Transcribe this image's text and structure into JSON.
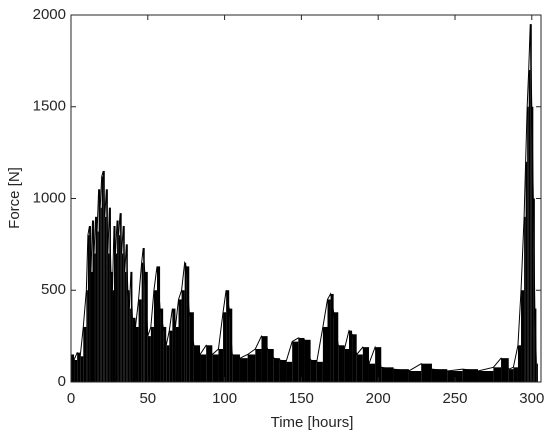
{
  "chart_data": {
    "type": "line",
    "xlabel": "Time [hours]",
    "ylabel": "Force [N]",
    "color": "#000000",
    "xlim": [
      0,
      306
    ],
    "ylim": [
      0,
      2000
    ],
    "xticks": [
      0,
      50,
      100,
      150,
      200,
      250,
      300
    ],
    "yticks": [
      0,
      500,
      1000,
      1500,
      2000
    ],
    "x": [
      0,
      2,
      4,
      6,
      8,
      10,
      11,
      12,
      13,
      14,
      15,
      16,
      17,
      18,
      19,
      20,
      21,
      22,
      23,
      24,
      25,
      26,
      27,
      28,
      29,
      30,
      31,
      32,
      33,
      34,
      35,
      36,
      37,
      38,
      39,
      40,
      42,
      44,
      46,
      47,
      48,
      50,
      52,
      54,
      56,
      58,
      60,
      62,
      64,
      66,
      68,
      70,
      72,
      74,
      75,
      77,
      80,
      84,
      88,
      92,
      96,
      99,
      101,
      103,
      105,
      110,
      115,
      120,
      124,
      128,
      132,
      136,
      140,
      144,
      148,
      152,
      156,
      160,
      164,
      167,
      169,
      171,
      174,
      178,
      181,
      183,
      186,
      190,
      194,
      198,
      202,
      210,
      220,
      228,
      235,
      245,
      255,
      265,
      275,
      280,
      285,
      288,
      291,
      293,
      295,
      296,
      297,
      298,
      299,
      300,
      301,
      302,
      303
    ],
    "values": [
      150,
      120,
      160,
      140,
      300,
      500,
      800,
      850,
      600,
      880,
      700,
      900,
      820,
      1050,
      950,
      1120,
      1150,
      900,
      1050,
      700,
      950,
      600,
      500,
      850,
      700,
      880,
      800,
      920,
      700,
      850,
      600,
      750,
      500,
      400,
      600,
      350,
      300,
      450,
      650,
      730,
      600,
      250,
      300,
      500,
      630,
      400,
      300,
      200,
      280,
      400,
      300,
      450,
      500,
      650,
      630,
      380,
      200,
      150,
      200,
      150,
      180,
      380,
      500,
      400,
      150,
      130,
      150,
      180,
      250,
      180,
      130,
      120,
      110,
      220,
      240,
      230,
      120,
      110,
      300,
      450,
      480,
      380,
      200,
      180,
      280,
      260,
      150,
      190,
      100,
      190,
      80,
      70,
      60,
      100,
      70,
      60,
      70,
      60,
      80,
      130,
      70,
      80,
      200,
      500,
      900,
      1200,
      1500,
      1700,
      1950,
      1500,
      1000,
      400,
      100
    ]
  }
}
